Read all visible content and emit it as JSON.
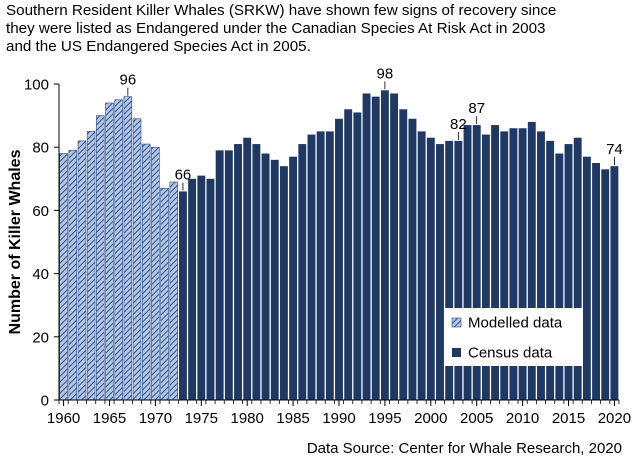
{
  "title_lines": [
    "Southern Resident Killer Whales (SRKW) have shown few signs of recovery since",
    "they were listed as Endangered under the Canadian Species At Risk Act in 2003",
    "and the US Endangered Species Act in 2005."
  ],
  "source": "Data Source: Center for Whale Research, 2020",
  "colors": {
    "census": "#1f3864",
    "modelled_fill": "#b4c7e7",
    "modelled_hatch": "#2e4f86",
    "axis": "#000000"
  },
  "chart_data": {
    "type": "bar",
    "ylabel": "Number of Killer Whales",
    "xlabel": "",
    "ylim": [
      0,
      100
    ],
    "yticks": [
      0,
      20,
      40,
      60,
      80,
      100
    ],
    "xticks": [
      1960,
      1965,
      1970,
      1975,
      1980,
      1985,
      1990,
      1995,
      2000,
      2005,
      2010,
      2015,
      2020
    ],
    "grid": false,
    "legend": "inside-bottom-right",
    "categories": [
      1960,
      1961,
      1962,
      1963,
      1964,
      1965,
      1966,
      1967,
      1968,
      1969,
      1970,
      1971,
      1972,
      1973,
      1974,
      1975,
      1976,
      1977,
      1978,
      1979,
      1980,
      1981,
      1982,
      1983,
      1984,
      1985,
      1986,
      1987,
      1988,
      1989,
      1990,
      1991,
      1992,
      1993,
      1994,
      1995,
      1996,
      1997,
      1998,
      1999,
      2000,
      2001,
      2002,
      2003,
      2004,
      2005,
      2006,
      2007,
      2008,
      2009,
      2010,
      2011,
      2012,
      2013,
      2014,
      2015,
      2016,
      2017,
      2018,
      2019,
      2020
    ],
    "series": [
      {
        "name": "Modelled data",
        "style": "hatched",
        "x": [
          1960,
          1961,
          1962,
          1963,
          1964,
          1965,
          1966,
          1967,
          1968,
          1969,
          1970,
          1971,
          1972
        ],
        "values": [
          78,
          79,
          82,
          85,
          90,
          94,
          95,
          96,
          89,
          81,
          80,
          67,
          69
        ]
      },
      {
        "name": "Census data",
        "style": "solid",
        "x": [
          1973,
          1974,
          1975,
          1976,
          1977,
          1978,
          1979,
          1980,
          1981,
          1982,
          1983,
          1984,
          1985,
          1986,
          1987,
          1988,
          1989,
          1990,
          1991,
          1992,
          1993,
          1994,
          1995,
          1996,
          1997,
          1998,
          1999,
          2000,
          2001,
          2002,
          2003,
          2004,
          2005,
          2006,
          2007,
          2008,
          2009,
          2010,
          2011,
          2012,
          2013,
          2014,
          2015,
          2016,
          2017,
          2018,
          2019,
          2020
        ],
        "values": [
          66,
          70,
          71,
          70,
          79,
          79,
          81,
          83,
          81,
          78,
          76,
          74,
          77,
          81,
          84,
          85,
          85,
          89,
          92,
          91,
          97,
          96,
          98,
          97,
          92,
          89,
          85,
          83,
          81,
          82,
          82,
          87,
          87,
          84,
          87,
          85,
          86,
          86,
          88,
          85,
          82,
          78,
          81,
          83,
          77,
          75,
          73,
          74
        ]
      }
    ],
    "annotations": [
      {
        "x": 1967,
        "y": 96,
        "text": "96"
      },
      {
        "x": 1973,
        "y": 66,
        "text": "66"
      },
      {
        "x": 1995,
        "y": 98,
        "text": "98"
      },
      {
        "x": 2003,
        "y": 82,
        "text": "82"
      },
      {
        "x": 2005,
        "y": 87,
        "text": "87"
      },
      {
        "x": 2020,
        "y": 74,
        "text": "74"
      }
    ]
  }
}
